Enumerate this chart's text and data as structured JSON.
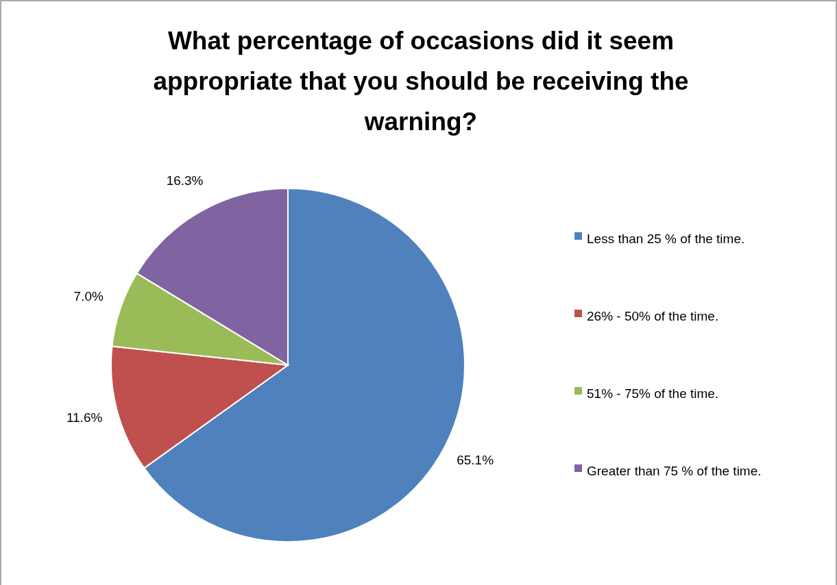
{
  "chart_data": {
    "type": "pie",
    "title": "What percentage of occasions did it seem appropriate that you should be receiving the warning?",
    "categories": [
      "Less than 25 % of the time.",
      "26% - 50% of the time.",
      "51% - 75% of the time.",
      "Greater than 75 % of the time."
    ],
    "values": [
      65.1,
      11.6,
      7.0,
      16.3
    ],
    "colors": [
      "#4f81bd",
      "#c0504d",
      "#9bbb59",
      "#8064a2"
    ],
    "value_labels": [
      "65.1%",
      "11.6%",
      "7.0%",
      "16.3%"
    ],
    "legend": "right"
  }
}
